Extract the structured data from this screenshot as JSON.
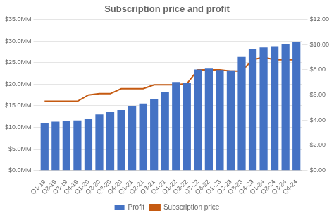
{
  "chart_data": {
    "type": "bar",
    "title": "Subscription price and profit",
    "categories": [
      "Q1-19",
      "Q2-19",
      "Q3-19",
      "Q4-19",
      "Q1-20",
      "Q2-20",
      "Q3-20",
      "Q4-20",
      "Q1-21",
      "Q2-21",
      "Q3-21",
      "Q4-21",
      "Q1-22",
      "Q2-22",
      "Q3-22",
      "Q4-22",
      "Q1-23",
      "Q2-23",
      "Q3-23",
      "Q4-23",
      "Q1-24",
      "Q2-24",
      "Q3-24",
      "Q4-24"
    ],
    "series": [
      {
        "name": "Profit",
        "type": "bar",
        "color": "#4472c4",
        "values": [
          11.0,
          11.3,
          11.4,
          11.6,
          11.9,
          13.0,
          13.5,
          14.0,
          15.0,
          15.5,
          16.5,
          18.2,
          20.5,
          20.3,
          23.4,
          23.6,
          23.3,
          23.2,
          26.3,
          28.2,
          28.5,
          28.8,
          29.2,
          29.8
        ]
      },
      {
        "name": "Subscription price",
        "type": "line",
        "color": "#c55a11",
        "axis": "y2",
        "values": [
          5.5,
          5.5,
          5.5,
          5.5,
          6.0,
          6.1,
          6.1,
          6.5,
          6.5,
          6.5,
          6.8,
          6.8,
          6.8,
          6.9,
          8.0,
          8.0,
          8.0,
          7.9,
          7.9,
          8.8,
          9.0,
          8.8,
          8.8,
          8.8
        ]
      }
    ],
    "ylim": [
      0,
      35
    ],
    "yticks": [
      {
        "value": 0,
        "label": "$0.0MM"
      },
      {
        "value": 5,
        "label": "$5.0MM"
      },
      {
        "value": 10,
        "label": "$10.0MM"
      },
      {
        "value": 15,
        "label": "$15.0MM"
      },
      {
        "value": 20,
        "label": "$20.0MM"
      },
      {
        "value": 25,
        "label": "$25.0MM"
      },
      {
        "value": 30,
        "label": "$30.0MM"
      },
      {
        "value": 35,
        "label": "$35.0MM"
      }
    ],
    "y2lim": [
      0,
      12
    ],
    "y2ticks": [
      {
        "value": 0,
        "label": "$0.00"
      },
      {
        "value": 2,
        "label": "$2.00"
      },
      {
        "value": 4,
        "label": "$4.00"
      },
      {
        "value": 6,
        "label": "$6.00"
      },
      {
        "value": 8,
        "label": "$8.00"
      },
      {
        "value": 10,
        "label": "$10.00"
      },
      {
        "value": 12,
        "label": "$12.00"
      }
    ],
    "grid": true,
    "legend": "bottom"
  }
}
